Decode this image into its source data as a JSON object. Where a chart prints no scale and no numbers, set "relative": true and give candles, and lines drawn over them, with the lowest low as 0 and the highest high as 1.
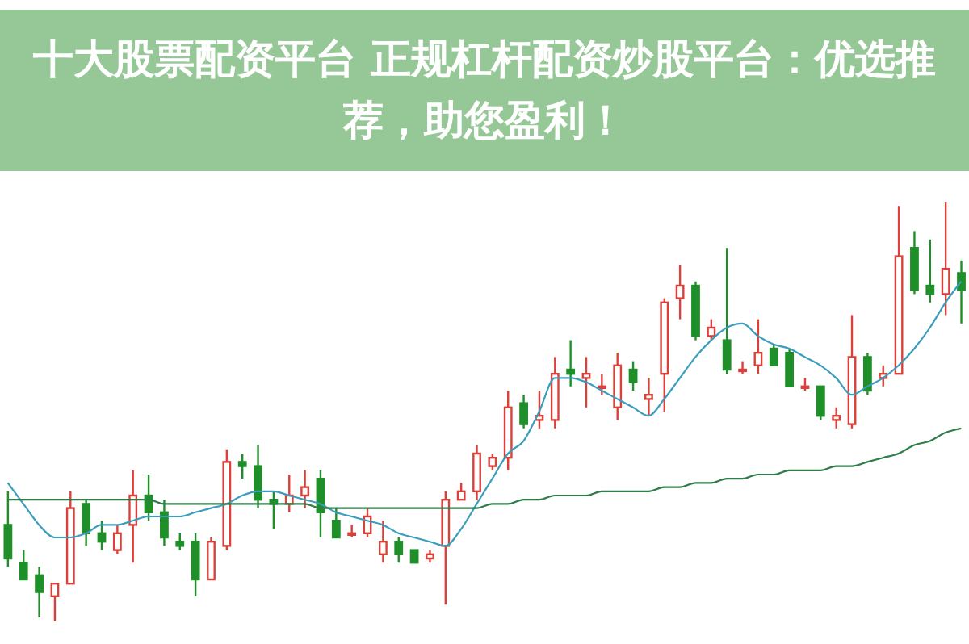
{
  "chart_data": {
    "type": "candlestick",
    "title": "十大股票配资平台 正规杠杆配资炒股平台：优选推荐，助您盈利！",
    "relative": true,
    "categories": [
      null,
      null,
      null,
      null,
      null,
      null,
      null,
      null,
      null,
      null,
      null,
      null,
      null,
      null,
      null,
      null,
      null,
      null,
      null,
      null,
      null,
      null,
      null,
      null,
      null,
      null,
      null,
      null,
      null,
      null,
      null,
      null,
      null,
      null,
      null,
      null,
      null,
      null,
      null,
      null,
      null,
      null,
      null,
      null,
      null,
      null,
      null,
      null,
      null,
      null,
      null,
      null,
      null,
      null,
      null,
      null,
      null,
      null,
      null,
      null,
      null,
      null
    ],
    "ohlc": [
      [
        0.23,
        0.31,
        0.13,
        0.15
      ],
      [
        0.14,
        0.17,
        0.1,
        0.1
      ],
      [
        0.11,
        0.13,
        0.01,
        0.07
      ],
      [
        0.06,
        0.09,
        0,
        0.09
      ],
      [
        0.09,
        0.31,
        0.09,
        0.27
      ],
      [
        0.28,
        0.29,
        0.18,
        0.21
      ],
      [
        0.21,
        0.24,
        0.17,
        0.19
      ],
      [
        0.17,
        0.23,
        0.16,
        0.21
      ],
      [
        0.23,
        0.36,
        0.14,
        0.3
      ],
      [
        0.3,
        0.35,
        0.24,
        0.26
      ],
      [
        0.26,
        0.29,
        0.18,
        0.2
      ],
      [
        0.19,
        0.21,
        0.17,
        0.18
      ],
      [
        0.19,
        0.21,
        0.06,
        0.1
      ],
      [
        0.1,
        0.2,
        0.1,
        0.19
      ],
      [
        0.18,
        0.41,
        0.17,
        0.38
      ],
      [
        0.38,
        0.4,
        0.34,
        0.37
      ],
      [
        0.37,
        0.42,
        0.27,
        0.29
      ],
      [
        0.29,
        0.31,
        0.22,
        0.28
      ],
      [
        0.28,
        0.35,
        0.26,
        0.3
      ],
      [
        0.3,
        0.36,
        0.27,
        0.32
      ],
      [
        0.34,
        0.36,
        0.2,
        0.26
      ],
      [
        0.24,
        0.27,
        0.2,
        0.2
      ],
      [
        0.21,
        0.23,
        0.2,
        0.21
      ],
      [
        0.21,
        0.27,
        0.2,
        0.25
      ],
      [
        0.16,
        0.24,
        0.14,
        0.19
      ],
      [
        0.19,
        0.2,
        0.14,
        0.16
      ],
      [
        0.17,
        0.17,
        0.14,
        0.14
      ],
      [
        0.15,
        0.17,
        0.14,
        0.16
      ],
      [
        0.18,
        0.31,
        0.04,
        0.29
      ],
      [
        0.29,
        0.33,
        0.29,
        0.31
      ],
      [
        0.31,
        0.42,
        0.29,
        0.4
      ],
      [
        0.37,
        0.4,
        0.36,
        0.39
      ],
      [
        0.39,
        0.55,
        0.36,
        0.51
      ],
      [
        0.52,
        0.54,
        0.46,
        0.47
      ],
      [
        0.48,
        0.55,
        0.46,
        0.49
      ],
      [
        0.48,
        0.63,
        0.46,
        0.59
      ],
      [
        0.6,
        0.67,
        0.56,
        0.59
      ],
      [
        0.58,
        0.63,
        0.51,
        0.59
      ],
      [
        0.56,
        0.59,
        0.54,
        0.56
      ],
      [
        0.51,
        0.64,
        0.48,
        0.61
      ],
      [
        0.6,
        0.62,
        0.55,
        0.57
      ],
      [
        0.53,
        0.58,
        0.49,
        0.54
      ],
      [
        0.59,
        0.77,
        0.5,
        0.76
      ],
      [
        0.77,
        0.85,
        0.72,
        0.8
      ],
      [
        0.8,
        0.81,
        0.67,
        0.68
      ],
      [
        0.68,
        0.72,
        0.67,
        0.7
      ],
      [
        0.67,
        0.89,
        0.59,
        0.6
      ],
      [
        0.6,
        0.62,
        0.59,
        0.6
      ],
      [
        0.61,
        0.72,
        0.59,
        0.64
      ],
      [
        0.65,
        0.66,
        0.61,
        0.61
      ],
      [
        0.64,
        0.65,
        0.56,
        0.56
      ],
      [
        0.56,
        0.58,
        0.55,
        0.56
      ],
      [
        0.56,
        0.56,
        0.48,
        0.49
      ],
      [
        0.48,
        0.51,
        0.46,
        0.49
      ],
      [
        0.47,
        0.73,
        0.46,
        0.63
      ],
      [
        0.63,
        0.64,
        0.54,
        0.55
      ],
      [
        0.58,
        0.61,
        0.56,
        0.59
      ],
      [
        0.59,
        0.99,
        0.59,
        0.87
      ],
      [
        0.89,
        0.93,
        0.78,
        0.79
      ],
      [
        0.8,
        0.91,
        0.76,
        0.78
      ],
      [
        0.78,
        1,
        0.73,
        0.84
      ],
      [
        0.83,
        0.86,
        0.71,
        0.79
      ]
    ],
    "series": [
      {
        "type": "line",
        "color": "#3b9dbd",
        "values": [
          0.33,
          0.28,
          0.23,
          0.2,
          0.2,
          0.21,
          0.23,
          0.23,
          0.24,
          0.25,
          0.25,
          0.25,
          0.26,
          0.27,
          0.28,
          0.3,
          0.31,
          0.31,
          0.3,
          0.29,
          0.28,
          0.26,
          0.25,
          0.24,
          0.23,
          0.21,
          0.2,
          0.19,
          0.18,
          0.22,
          0.28,
          0.34,
          0.4,
          0.43,
          0.5,
          0.58,
          0.58,
          0.57,
          0.55,
          0.53,
          0.51,
          0.49,
          0.53,
          0.58,
          0.63,
          0.67,
          0.7,
          0.71,
          0.68,
          0.66,
          0.65,
          0.63,
          0.61,
          0.58,
          0.54,
          0.56,
          0.58,
          0.61,
          0.65,
          0.7,
          0.76,
          0.81
        ]
      },
      {
        "type": "line",
        "color": "#2f7d4a",
        "values": [
          0.29,
          0.29,
          0.29,
          0.29,
          0.29,
          0.29,
          0.29,
          0.29,
          0.29,
          0.29,
          0.28,
          0.28,
          0.28,
          0.28,
          0.28,
          0.28,
          0.28,
          0.28,
          0.28,
          0.28,
          0.27,
          0.27,
          0.27,
          0.27,
          0.27,
          0.27,
          0.27,
          0.27,
          0.27,
          0.27,
          0.27,
          0.28,
          0.28,
          0.29,
          0.29,
          0.3,
          0.3,
          0.3,
          0.31,
          0.31,
          0.31,
          0.31,
          0.32,
          0.32,
          0.33,
          0.33,
          0.34,
          0.34,
          0.35,
          0.35,
          0.36,
          0.36,
          0.36,
          0.37,
          0.37,
          0.38,
          0.39,
          0.4,
          0.42,
          0.43,
          0.45,
          0.46
        ]
      }
    ]
  }
}
